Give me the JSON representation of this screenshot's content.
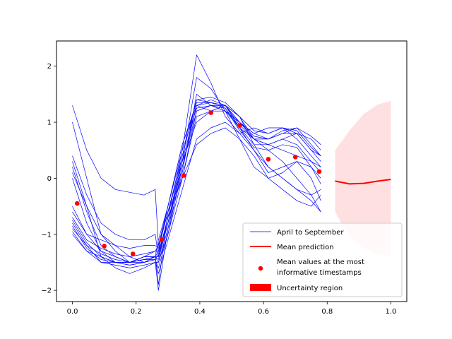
{
  "chart_data": {
    "type": "line",
    "xlim": [
      -0.05,
      1.05
    ],
    "ylim": [
      -2.2,
      2.45
    ],
    "xticks": [
      0.0,
      0.2,
      0.4,
      0.6,
      0.8,
      1.0
    ],
    "xtick_labels": [
      "0.0",
      "0.2",
      "0.4",
      "0.6",
      "0.8",
      "1.0"
    ],
    "yticks": [
      -2,
      -1,
      0,
      1,
      2
    ],
    "ytick_labels": [
      "−2",
      "−1",
      "0",
      "1",
      "2"
    ],
    "grid": false,
    "legend_position": "lower-right",
    "colors": {
      "history": "#0000ff",
      "mean": "#ff0000",
      "points": "#ff0000",
      "uncertainty": "#ffcccc"
    },
    "history_x": [
      0.0,
      0.045,
      0.09,
      0.135,
      0.18,
      0.225,
      0.26,
      0.27,
      0.3,
      0.345,
      0.39,
      0.435,
      0.48,
      0.525,
      0.57,
      0.615,
      0.66,
      0.705,
      0.75,
      0.78
    ],
    "history": [
      {
        "name": "April to September",
        "values": [
          1.3,
          0.5,
          0.0,
          -0.2,
          -0.25,
          -0.3,
          -0.2,
          -1.2,
          -0.5,
          0.5,
          2.2,
          1.7,
          1.1,
          0.8,
          0.9,
          0.8,
          0.9,
          0.8,
          0.7,
          0.5
        ]
      },
      {
        "values": [
          1.0,
          0.0,
          -1.0,
          -1.2,
          -1.4,
          -1.5,
          -1.4,
          -1.9,
          -0.6,
          0.4,
          1.4,
          1.35,
          1.3,
          1.0,
          0.7,
          0.6,
          0.5,
          0.4,
          0.3,
          0.2
        ]
      },
      {
        "values": [
          0.3,
          -0.5,
          -1.4,
          -1.6,
          -1.7,
          -1.6,
          -1.5,
          -2.0,
          -0.9,
          0.1,
          1.5,
          1.3,
          1.2,
          0.9,
          0.7,
          0.7,
          0.8,
          0.9,
          0.6,
          0.4
        ]
      },
      {
        "values": [
          -0.8,
          -1.2,
          -1.5,
          -1.5,
          -1.5,
          -1.5,
          -1.4,
          -1.3,
          -0.8,
          0.2,
          1.2,
          1.3,
          1.3,
          0.9,
          0.6,
          0.6,
          0.7,
          0.8,
          0.5,
          0.3
        ]
      },
      {
        "values": [
          -1.0,
          -1.3,
          -1.4,
          -1.5,
          -1.5,
          -1.4,
          -1.4,
          -1.1,
          -0.5,
          0.6,
          1.3,
          1.4,
          1.3,
          1.0,
          0.8,
          0.9,
          0.9,
          0.7,
          0.4,
          0.2
        ]
      },
      {
        "values": [
          0.2,
          -0.6,
          -1.2,
          -1.4,
          -1.5,
          -1.4,
          -1.3,
          -1.2,
          -0.6,
          0.3,
          1.8,
          1.6,
          1.2,
          0.7,
          0.2,
          0.0,
          0.1,
          0.3,
          0.2,
          0.0
        ]
      },
      {
        "values": [
          0.4,
          -0.3,
          -0.8,
          -1.0,
          -1.1,
          -1.1,
          -1.0,
          -1.4,
          -0.7,
          0.0,
          1.1,
          1.2,
          1.3,
          1.1,
          0.7,
          0.5,
          0.3,
          0.0,
          -0.3,
          -0.6
        ]
      },
      {
        "values": [
          -0.5,
          -1.0,
          -1.3,
          -1.4,
          -1.5,
          -1.4,
          -1.4,
          -1.5,
          -1.0,
          0.2,
          1.3,
          1.2,
          1.2,
          1.0,
          0.8,
          0.7,
          0.8,
          0.8,
          0.5,
          0.4
        ]
      },
      {
        "values": [
          -0.9,
          -1.2,
          -1.35,
          -1.45,
          -1.5,
          -1.45,
          -1.4,
          -1.4,
          -0.8,
          0.3,
          1.0,
          1.2,
          1.3,
          1.1,
          0.6,
          0.2,
          0.0,
          -0.2,
          -0.3,
          -0.2
        ]
      },
      {
        "values": [
          -0.7,
          -1.1,
          -1.25,
          -1.35,
          -1.4,
          -1.35,
          -1.3,
          -1.3,
          -0.5,
          0.6,
          1.35,
          1.35,
          1.25,
          0.9,
          0.5,
          0.1,
          0.2,
          0.3,
          0.0,
          -0.4
        ]
      },
      {
        "values": [
          0.0,
          -0.8,
          -1.3,
          -1.5,
          -1.55,
          -1.5,
          -1.45,
          -1.6,
          -1.0,
          0.0,
          1.2,
          1.3,
          1.2,
          1.0,
          0.75,
          0.7,
          0.85,
          0.9,
          0.75,
          0.6
        ]
      },
      {
        "values": [
          -0.95,
          -1.3,
          -1.5,
          -1.55,
          -1.6,
          -1.55,
          -1.5,
          -1.5,
          -0.9,
          0.3,
          1.3,
          1.35,
          1.3,
          0.95,
          0.7,
          0.6,
          0.7,
          0.6,
          0.3,
          0.1
        ]
      },
      {
        "values": [
          -0.6,
          -1.0,
          -1.1,
          -1.2,
          -1.25,
          -1.2,
          -1.2,
          -1.25,
          -0.6,
          0.0,
          0.6,
          0.8,
          0.9,
          0.7,
          0.4,
          0.0,
          -0.2,
          -0.4,
          -0.5,
          -0.3
        ]
      },
      {
        "values": [
          -0.85,
          -1.25,
          -1.45,
          -1.5,
          -1.5,
          -1.45,
          -1.4,
          -1.45,
          -0.8,
          0.4,
          1.4,
          1.45,
          1.35,
          1.1,
          0.85,
          0.8,
          0.9,
          0.85,
          0.55,
          0.4
        ]
      },
      {
        "values": [
          0.1,
          -0.5,
          -1.0,
          -1.3,
          -1.5,
          -1.45,
          -1.45,
          -1.7,
          -1.1,
          -0.2,
          0.7,
          0.9,
          1.0,
          0.8,
          0.5,
          0.2,
          0.0,
          -0.2,
          -0.4,
          -0.6
        ]
      },
      {
        "values": [
          -0.75,
          -1.15,
          -1.4,
          -1.5,
          -1.55,
          -1.5,
          -1.45,
          -1.35,
          -0.7,
          0.5,
          1.25,
          1.3,
          1.25,
          0.85,
          0.55,
          0.5,
          0.6,
          0.55,
          0.2,
          -0.1
        ]
      }
    ],
    "mean_prediction": {
      "name": "Mean prediction",
      "x": [
        0.825,
        0.87,
        0.915,
        0.96,
        1.0
      ],
      "values": [
        -0.05,
        -0.1,
        -0.09,
        -0.05,
        -0.02
      ]
    },
    "uncertainty_region": {
      "name": "Uncertainty region",
      "x": [
        0.825,
        0.87,
        0.915,
        0.96,
        1.0
      ],
      "upper": [
        0.5,
        0.85,
        1.15,
        1.32,
        1.38
      ],
      "lower": [
        -0.6,
        -1.05,
        -1.25,
        -1.35,
        -1.4
      ]
    },
    "points": {
      "name": "Mean values at the most informative timestamps",
      "x": [
        0.015,
        0.1,
        0.19,
        0.28,
        0.35,
        0.435,
        0.525,
        0.615,
        0.7,
        0.775
      ],
      "values": [
        -0.45,
        -1.21,
        -1.35,
        -1.1,
        0.05,
        1.17,
        0.94,
        0.34,
        0.38,
        0.12
      ]
    },
    "legend": [
      {
        "kind": "line-thin",
        "label": "April to September"
      },
      {
        "kind": "line-thick",
        "label": "Mean prediction"
      },
      {
        "kind": "dot",
        "label": "Mean values at the most",
        "label2": "informative timestamps"
      },
      {
        "kind": "patch",
        "label": "Uncertainty region"
      }
    ]
  }
}
